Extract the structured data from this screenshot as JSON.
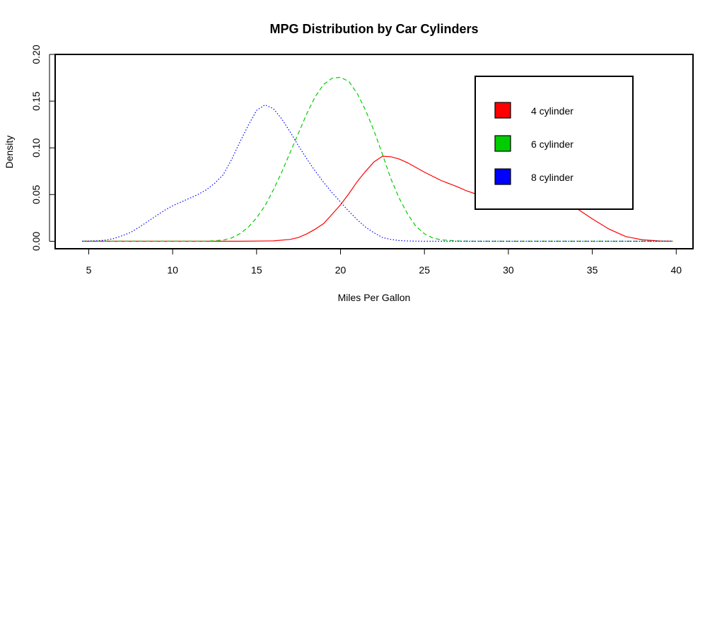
{
  "chart_data": {
    "type": "line",
    "title": "MPG Distribution by Car Cylinders",
    "xlabel": "Miles Per Gallon",
    "ylabel": "Density",
    "xlim": [
      3,
      41
    ],
    "ylim": [
      -0.008,
      0.2
    ],
    "x_ticks": [
      "5",
      "10",
      "15",
      "20",
      "25",
      "30",
      "35",
      "40"
    ],
    "y_ticks": [
      "0.00",
      "0.05",
      "0.10",
      "0.15",
      "0.20"
    ],
    "grid": false,
    "legend_position": "top-right",
    "series": [
      {
        "name": "4 cylinder",
        "color": "#FF0000",
        "line_style": "solid",
        "x": [
          4.6,
          14.0,
          16.0,
          17.0,
          17.5,
          18.0,
          18.5,
          19.0,
          19.5,
          20.0,
          20.5,
          21.0,
          21.5,
          22.0,
          22.5,
          23.0,
          23.5,
          24.0,
          24.5,
          25.0,
          26.0,
          27.0,
          27.5,
          28.0,
          29.0,
          30.0,
          31.0,
          32.0,
          33.0,
          33.5,
          34.0,
          35.0,
          36.0,
          37.0,
          38.0,
          39.0,
          39.8
        ],
        "y": [
          0.0,
          0.0,
          0.0004,
          0.002,
          0.004,
          0.008,
          0.013,
          0.019,
          0.029,
          0.039,
          0.051,
          0.064,
          0.075,
          0.085,
          0.091,
          0.0905,
          0.088,
          0.084,
          0.079,
          0.074,
          0.065,
          0.058,
          0.054,
          0.051,
          0.05,
          0.049,
          0.049,
          0.05,
          0.048,
          0.043,
          0.036,
          0.024,
          0.013,
          0.005,
          0.0015,
          0.0003,
          0.0
        ]
      },
      {
        "name": "6 cylinder",
        "color": "#00CD00",
        "line_style": "dashed",
        "x": [
          4.6,
          12.0,
          13.0,
          13.5,
          14.0,
          14.5,
          15.0,
          15.5,
          16.0,
          16.5,
          17.0,
          17.5,
          18.0,
          18.5,
          19.0,
          19.5,
          20.0,
          20.5,
          21.0,
          21.5,
          22.0,
          22.5,
          23.0,
          23.5,
          24.0,
          24.5,
          25.0,
          25.5,
          26.0,
          27.0,
          28.0,
          39.8
        ],
        "y": [
          0.0,
          0.0,
          0.0012,
          0.0035,
          0.008,
          0.015,
          0.025,
          0.038,
          0.055,
          0.074,
          0.095,
          0.116,
          0.137,
          0.155,
          0.168,
          0.1745,
          0.1755,
          0.171,
          0.158,
          0.14,
          0.118,
          0.093,
          0.067,
          0.046,
          0.029,
          0.016,
          0.008,
          0.0035,
          0.0015,
          0.0003,
          0.0,
          0.0
        ]
      },
      {
        "name": "8 cylinder",
        "color": "#0000FF",
        "line_style": "dotted",
        "x": [
          4.6,
          5.5,
          6.0,
          6.5,
          7.0,
          7.5,
          8.0,
          8.5,
          9.0,
          9.5,
          10.0,
          10.5,
          11.0,
          11.5,
          12.0,
          12.5,
          13.0,
          13.5,
          14.0,
          14.5,
          15.0,
          15.5,
          16.0,
          16.5,
          17.0,
          17.5,
          18.0,
          18.5,
          19.0,
          19.5,
          20.0,
          20.5,
          21.0,
          21.5,
          22.0,
          22.5,
          23.0,
          23.5,
          24.0,
          25.0,
          26.0,
          39.8
        ],
        "y": [
          0.0,
          0.0005,
          0.0012,
          0.003,
          0.006,
          0.0095,
          0.015,
          0.021,
          0.027,
          0.033,
          0.038,
          0.042,
          0.046,
          0.05,
          0.055,
          0.062,
          0.071,
          0.087,
          0.106,
          0.124,
          0.14,
          0.146,
          0.142,
          0.131,
          0.117,
          0.102,
          0.088,
          0.075,
          0.063,
          0.052,
          0.042,
          0.032,
          0.023,
          0.015,
          0.009,
          0.004,
          0.002,
          0.0008,
          0.0003,
          0.0,
          0.0,
          0.0
        ]
      }
    ]
  }
}
